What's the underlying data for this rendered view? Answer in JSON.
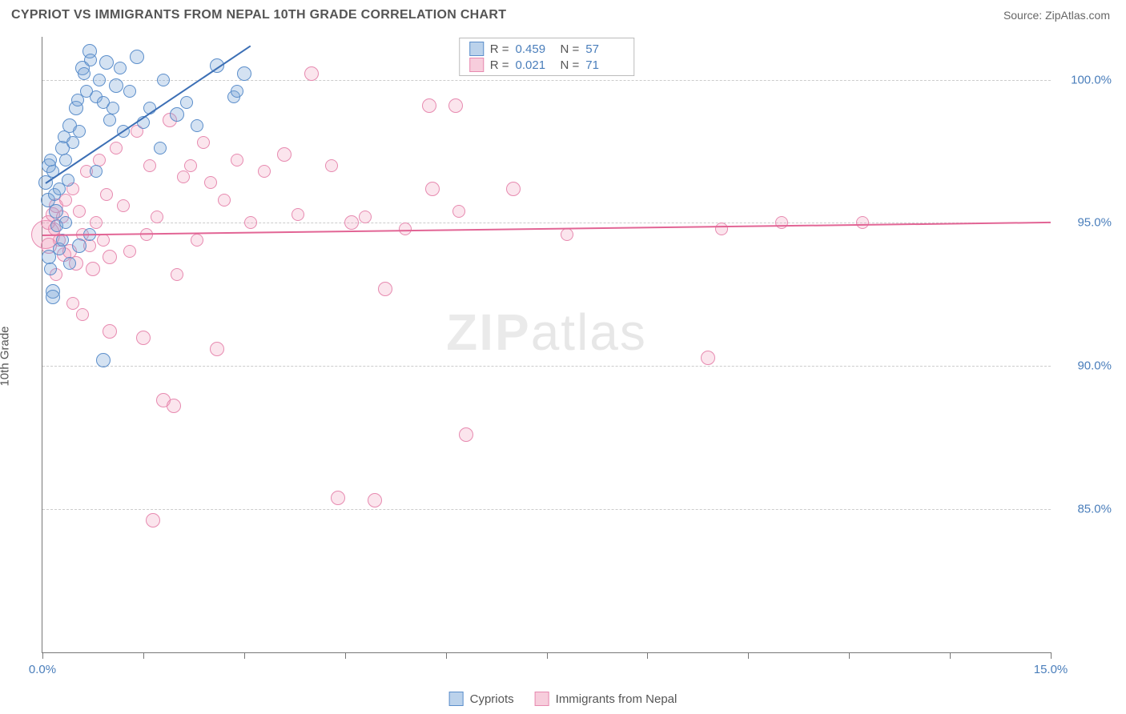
{
  "header": {
    "title": "CYPRIOT VS IMMIGRANTS FROM NEPAL 10TH GRADE CORRELATION CHART",
    "source": "Source: ZipAtlas.com"
  },
  "axes": {
    "y_label": "10th Grade",
    "x_min": 0.0,
    "x_max": 15.0,
    "y_min": 80.0,
    "y_max": 101.5,
    "y_ticks": [
      {
        "v": 85.0,
        "label": "85.0%"
      },
      {
        "v": 90.0,
        "label": "90.0%"
      },
      {
        "v": 95.0,
        "label": "95.0%"
      },
      {
        "v": 100.0,
        "label": "100.0%"
      }
    ],
    "x_ticks": [
      0.0,
      1.5,
      3.0,
      4.5,
      6.0,
      7.5,
      9.0,
      10.5,
      12.0,
      13.5,
      15.0
    ],
    "x_labels": [
      {
        "v": 0.0,
        "label": "0.0%"
      },
      {
        "v": 15.0,
        "label": "15.0%"
      }
    ],
    "grid_color": "#cccccc",
    "tick_label_color": "#4a7ebb",
    "axis_label_color": "#555555"
  },
  "watermark": "ZIPatlas",
  "stats": {
    "r_label": "R =",
    "n_label": "N =",
    "rows": [
      {
        "series": "blue",
        "r": "0.459",
        "n": "57"
      },
      {
        "series": "pink",
        "r": "0.021",
        "n": "71"
      }
    ]
  },
  "legend": {
    "items": [
      {
        "series": "blue",
        "label": "Cypriots"
      },
      {
        "series": "pink",
        "label": "Immigrants from Nepal"
      }
    ]
  },
  "series": {
    "blue": {
      "color_fill": "rgba(120,165,216,0.32)",
      "color_stroke": "#5b8ecb",
      "trend_color": "#3c6fb5",
      "trend": {
        "x1": 0.05,
        "y1": 96.4,
        "x2": 3.1,
        "y2": 101.2
      },
      "points": [
        {
          "x": 0.05,
          "y": 96.4,
          "r": 9
        },
        {
          "x": 0.1,
          "y": 97.0,
          "r": 9
        },
        {
          "x": 0.12,
          "y": 97.2,
          "r": 8
        },
        {
          "x": 0.08,
          "y": 95.8,
          "r": 9
        },
        {
          "x": 0.15,
          "y": 96.8,
          "r": 8
        },
        {
          "x": 0.18,
          "y": 96.0,
          "r": 8
        },
        {
          "x": 0.2,
          "y": 95.4,
          "r": 9
        },
        {
          "x": 0.22,
          "y": 94.9,
          "r": 8
        },
        {
          "x": 0.25,
          "y": 96.2,
          "r": 8
        },
        {
          "x": 0.3,
          "y": 97.6,
          "r": 9
        },
        {
          "x": 0.32,
          "y": 98.0,
          "r": 8
        },
        {
          "x": 0.35,
          "y": 97.2,
          "r": 8
        },
        {
          "x": 0.38,
          "y": 96.5,
          "r": 8
        },
        {
          "x": 0.4,
          "y": 98.4,
          "r": 9
        },
        {
          "x": 0.45,
          "y": 97.8,
          "r": 8
        },
        {
          "x": 0.5,
          "y": 99.0,
          "r": 9
        },
        {
          "x": 0.52,
          "y": 99.3,
          "r": 8
        },
        {
          "x": 0.55,
          "y": 98.2,
          "r": 8
        },
        {
          "x": 0.6,
          "y": 100.4,
          "r": 9
        },
        {
          "x": 0.62,
          "y": 100.2,
          "r": 8
        },
        {
          "x": 0.65,
          "y": 99.6,
          "r": 8
        },
        {
          "x": 0.7,
          "y": 101.0,
          "r": 9
        },
        {
          "x": 0.72,
          "y": 100.7,
          "r": 8
        },
        {
          "x": 0.8,
          "y": 99.4,
          "r": 8
        },
        {
          "x": 0.85,
          "y": 100.0,
          "r": 8
        },
        {
          "x": 0.9,
          "y": 99.2,
          "r": 8
        },
        {
          "x": 0.95,
          "y": 100.6,
          "r": 9
        },
        {
          "x": 1.0,
          "y": 98.6,
          "r": 8
        },
        {
          "x": 1.05,
          "y": 99.0,
          "r": 8
        },
        {
          "x": 1.1,
          "y": 99.8,
          "r": 9
        },
        {
          "x": 1.15,
          "y": 100.4,
          "r": 8
        },
        {
          "x": 1.2,
          "y": 98.2,
          "r": 8
        },
        {
          "x": 1.3,
          "y": 99.6,
          "r": 8
        },
        {
          "x": 1.4,
          "y": 100.8,
          "r": 9
        },
        {
          "x": 1.5,
          "y": 98.5,
          "r": 8
        },
        {
          "x": 1.6,
          "y": 99.0,
          "r": 8
        },
        {
          "x": 1.75,
          "y": 97.6,
          "r": 8
        },
        {
          "x": 1.8,
          "y": 100.0,
          "r": 8
        },
        {
          "x": 2.0,
          "y": 98.8,
          "r": 9
        },
        {
          "x": 2.15,
          "y": 99.2,
          "r": 8
        },
        {
          "x": 2.3,
          "y": 98.4,
          "r": 8
        },
        {
          "x": 2.6,
          "y": 100.5,
          "r": 9
        },
        {
          "x": 2.85,
          "y": 99.4,
          "r": 8
        },
        {
          "x": 2.9,
          "y": 99.6,
          "r": 8
        },
        {
          "x": 3.0,
          "y": 100.2,
          "r": 9
        },
        {
          "x": 0.1,
          "y": 93.8,
          "r": 9
        },
        {
          "x": 0.12,
          "y": 93.4,
          "r": 8
        },
        {
          "x": 0.15,
          "y": 92.6,
          "r": 9
        },
        {
          "x": 0.15,
          "y": 92.4,
          "r": 9
        },
        {
          "x": 0.25,
          "y": 94.1,
          "r": 8
        },
        {
          "x": 0.3,
          "y": 94.4,
          "r": 8
        },
        {
          "x": 0.35,
          "y": 95.0,
          "r": 8
        },
        {
          "x": 0.55,
          "y": 94.2,
          "r": 9
        },
        {
          "x": 0.8,
          "y": 96.8,
          "r": 8
        },
        {
          "x": 0.7,
          "y": 94.6,
          "r": 8
        },
        {
          "x": 0.9,
          "y": 90.2,
          "r": 9
        },
        {
          "x": 0.4,
          "y": 93.6,
          "r": 8
        }
      ]
    },
    "pink": {
      "color_fill": "rgba(240,155,185,0.26)",
      "color_stroke": "#e78ab0",
      "trend_color": "#e26595",
      "trend": {
        "x1": 0.0,
        "y1": 94.6,
        "x2": 15.0,
        "y2": 95.05
      },
      "points": [
        {
          "x": 0.05,
          "y": 94.6,
          "r": 18
        },
        {
          "x": 0.08,
          "y": 95.0,
          "r": 9
        },
        {
          "x": 0.1,
          "y": 94.2,
          "r": 10
        },
        {
          "x": 0.15,
          "y": 95.3,
          "r": 9
        },
        {
          "x": 0.18,
          "y": 94.8,
          "r": 8
        },
        {
          "x": 0.2,
          "y": 95.6,
          "r": 9
        },
        {
          "x": 0.25,
          "y": 94.4,
          "r": 8
        },
        {
          "x": 0.3,
          "y": 95.2,
          "r": 8
        },
        {
          "x": 0.32,
          "y": 93.9,
          "r": 9
        },
        {
          "x": 0.35,
          "y": 95.8,
          "r": 8
        },
        {
          "x": 0.4,
          "y": 94.0,
          "r": 9
        },
        {
          "x": 0.45,
          "y": 96.2,
          "r": 8
        },
        {
          "x": 0.5,
          "y": 93.6,
          "r": 9
        },
        {
          "x": 0.55,
          "y": 95.4,
          "r": 8
        },
        {
          "x": 0.6,
          "y": 94.6,
          "r": 8
        },
        {
          "x": 0.65,
          "y": 96.8,
          "r": 8
        },
        {
          "x": 0.7,
          "y": 94.2,
          "r": 8
        },
        {
          "x": 0.75,
          "y": 93.4,
          "r": 9
        },
        {
          "x": 0.8,
          "y": 95.0,
          "r": 8
        },
        {
          "x": 0.85,
          "y": 97.2,
          "r": 8
        },
        {
          "x": 0.9,
          "y": 94.4,
          "r": 8
        },
        {
          "x": 0.95,
          "y": 96.0,
          "r": 8
        },
        {
          "x": 1.0,
          "y": 93.8,
          "r": 9
        },
        {
          "x": 1.1,
          "y": 97.6,
          "r": 8
        },
        {
          "x": 1.2,
          "y": 95.6,
          "r": 8
        },
        {
          "x": 1.3,
          "y": 94.0,
          "r": 8
        },
        {
          "x": 1.4,
          "y": 98.2,
          "r": 8
        },
        {
          "x": 1.5,
          "y": 91.0,
          "r": 9
        },
        {
          "x": 1.55,
          "y": 94.6,
          "r": 8
        },
        {
          "x": 1.6,
          "y": 97.0,
          "r": 8
        },
        {
          "x": 1.65,
          "y": 84.6,
          "r": 9
        },
        {
          "x": 1.7,
          "y": 95.2,
          "r": 8
        },
        {
          "x": 1.8,
          "y": 88.8,
          "r": 9
        },
        {
          "x": 1.9,
          "y": 98.6,
          "r": 9
        },
        {
          "x": 1.95,
          "y": 88.6,
          "r": 9
        },
        {
          "x": 2.0,
          "y": 93.2,
          "r": 8
        },
        {
          "x": 2.1,
          "y": 96.6,
          "r": 8
        },
        {
          "x": 2.2,
          "y": 97.0,
          "r": 8
        },
        {
          "x": 2.3,
          "y": 94.4,
          "r": 8
        },
        {
          "x": 2.4,
          "y": 97.8,
          "r": 8
        },
        {
          "x": 2.5,
          "y": 96.4,
          "r": 8
        },
        {
          "x": 2.6,
          "y": 90.6,
          "r": 9
        },
        {
          "x": 2.7,
          "y": 95.8,
          "r": 8
        },
        {
          "x": 2.9,
          "y": 97.2,
          "r": 8
        },
        {
          "x": 3.1,
          "y": 95.0,
          "r": 8
        },
        {
          "x": 3.3,
          "y": 96.8,
          "r": 8
        },
        {
          "x": 3.6,
          "y": 97.4,
          "r": 9
        },
        {
          "x": 3.8,
          "y": 95.3,
          "r": 8
        },
        {
          "x": 4.0,
          "y": 100.2,
          "r": 9
        },
        {
          "x": 4.3,
          "y": 97.0,
          "r": 8
        },
        {
          "x": 4.4,
          "y": 85.4,
          "r": 9
        },
        {
          "x": 4.6,
          "y": 95.0,
          "r": 9
        },
        {
          "x": 4.8,
          "y": 95.2,
          "r": 8
        },
        {
          "x": 4.95,
          "y": 85.3,
          "r": 9
        },
        {
          "x": 5.1,
          "y": 92.7,
          "r": 9
        },
        {
          "x": 5.4,
          "y": 94.8,
          "r": 8
        },
        {
          "x": 5.75,
          "y": 99.1,
          "r": 9
        },
        {
          "x": 5.8,
          "y": 96.2,
          "r": 9
        },
        {
          "x": 6.15,
          "y": 99.1,
          "r": 9
        },
        {
          "x": 6.2,
          "y": 95.4,
          "r": 8
        },
        {
          "x": 6.3,
          "y": 87.6,
          "r": 9
        },
        {
          "x": 7.0,
          "y": 96.2,
          "r": 9
        },
        {
          "x": 7.8,
          "y": 94.6,
          "r": 8
        },
        {
          "x": 9.9,
          "y": 90.3,
          "r": 9
        },
        {
          "x": 10.1,
          "y": 94.8,
          "r": 8
        },
        {
          "x": 11.0,
          "y": 95.0,
          "r": 8
        },
        {
          "x": 12.2,
          "y": 95.0,
          "r": 8
        },
        {
          "x": 1.0,
          "y": 91.2,
          "r": 9
        },
        {
          "x": 0.6,
          "y": 91.8,
          "r": 8
        },
        {
          "x": 0.45,
          "y": 92.2,
          "r": 8
        },
        {
          "x": 0.2,
          "y": 93.2,
          "r": 8
        }
      ]
    }
  }
}
